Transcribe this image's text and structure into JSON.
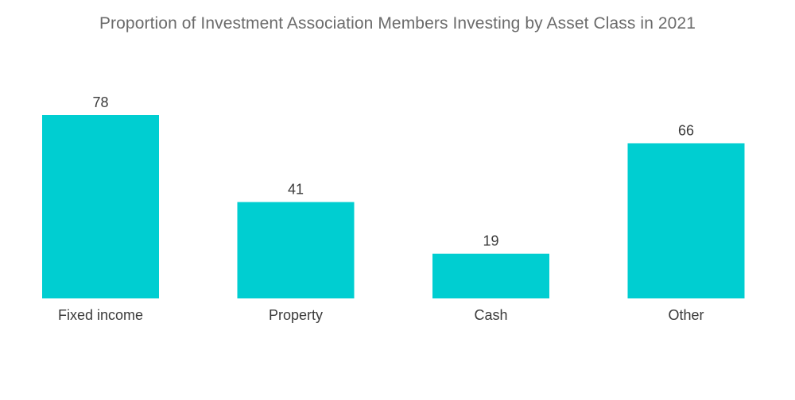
{
  "chart_data": {
    "type": "bar",
    "title": "Proportion of Investment Association Members Investing by Asset Class in 2021",
    "categories": [
      "Fixed income",
      "Property",
      "Cash",
      "Other"
    ],
    "values": [
      78,
      41,
      19,
      66
    ],
    "xlabel": "",
    "ylabel": "",
    "ylim": [
      0,
      78
    ],
    "grid": false,
    "colors": {
      "bar": "#00CED1"
    }
  }
}
